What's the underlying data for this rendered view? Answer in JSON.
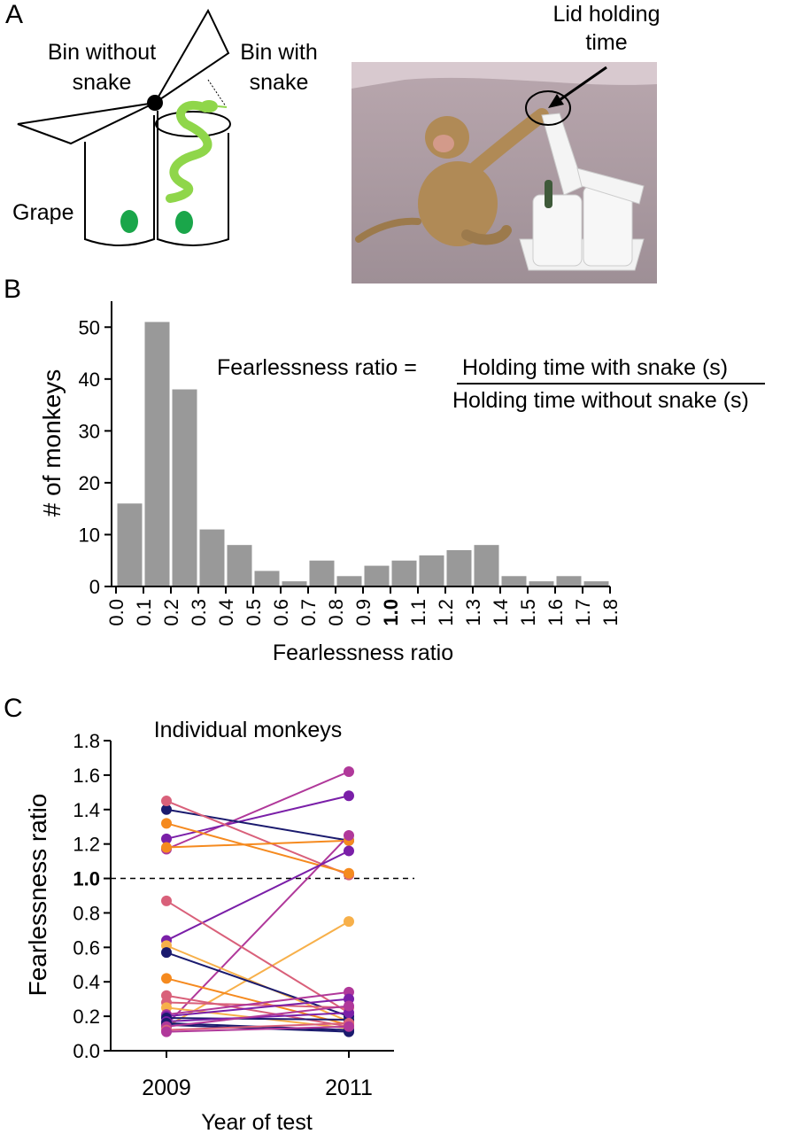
{
  "panelA": {
    "letter": "A",
    "bin_without_label_1": "Bin without",
    "bin_without_label_2": "snake",
    "bin_with_label_1": "Bin with",
    "bin_with_label_2": "snake",
    "grape_label": "Grape",
    "lid_label_1": "Lid holding",
    "lid_label_2": "time"
  },
  "panelB": {
    "letter": "B",
    "formula_lhs": "Fearlessness ratio =",
    "formula_numerator": "Holding time with snake (s)",
    "formula_denominator": "Holding time without snake (s)"
  },
  "panelC": {
    "letter": "C"
  },
  "colors": {
    "bar": "#999999",
    "navy": "#1a1a6e",
    "purple": "#7a1fa8",
    "magenta": "#b0389a",
    "rose": "#d9607a",
    "orange": "#f58a1f",
    "light_orange": "#f7b04a",
    "snake": "#8fd64a",
    "grape": "#1aa64a"
  },
  "chart_data": [
    {
      "type": "bar",
      "ylabel": "# of monkeys",
      "xlabel": "Fearlessness ratio",
      "ylim": [
        0,
        55
      ],
      "yticks": [
        0,
        10,
        20,
        30,
        40,
        50
      ],
      "xticks": [
        "0.0",
        "0.1",
        "0.2",
        "0.3",
        "0.4",
        "0.5",
        "0.6",
        "0.7",
        "0.8",
        "0.9",
        "1.0",
        "1.1",
        "1.2",
        "1.3",
        "1.4",
        "1.5",
        "1.6",
        "1.7",
        "1.8"
      ],
      "bold_tick": "1.0",
      "bin_edges": [
        0.0,
        0.1,
        0.2,
        0.3,
        0.4,
        0.5,
        0.6,
        0.7,
        0.8,
        0.9,
        1.0,
        1.1,
        1.2,
        1.3,
        1.4,
        1.5,
        1.6,
        1.7,
        1.8
      ],
      "values": [
        16,
        51,
        38,
        11,
        8,
        3,
        1,
        5,
        2,
        4,
        5,
        6,
        7,
        8,
        2,
        1,
        2,
        1
      ]
    },
    {
      "type": "line",
      "title": "Individual monkeys",
      "ylabel": "Fearlessness ratio",
      "xlabel": "Year of test",
      "categories": [
        "2009",
        "2011"
      ],
      "ylim": [
        0,
        1.8
      ],
      "yticks": [
        "0.0",
        "0.2",
        "0.4",
        "0.6",
        "0.8",
        "1.0",
        "1.2",
        "1.4",
        "1.6",
        "1.8"
      ],
      "bold_tick": "1.0",
      "reference_line": 1.0,
      "series": [
        {
          "values": [
            1.17,
            1.62
          ],
          "color": "magenta"
        },
        {
          "values": [
            1.23,
            1.48
          ],
          "color": "purple"
        },
        {
          "values": [
            1.4,
            1.22
          ],
          "color": "navy"
        },
        {
          "values": [
            1.45,
            1.02
          ],
          "color": "rose"
        },
        {
          "values": [
            1.32,
            1.03
          ],
          "color": "orange"
        },
        {
          "values": [
            1.18,
            1.22
          ],
          "color": "orange"
        },
        {
          "values": [
            0.15,
            1.25
          ],
          "color": "magenta"
        },
        {
          "values": [
            0.64,
            1.16
          ],
          "color": "purple"
        },
        {
          "values": [
            0.14,
            0.75
          ],
          "color": "light_orange"
        },
        {
          "values": [
            0.87,
            0.22
          ],
          "color": "rose"
        },
        {
          "values": [
            0.61,
            0.17
          ],
          "color": "light_orange"
        },
        {
          "values": [
            0.57,
            0.2
          ],
          "color": "navy"
        },
        {
          "values": [
            0.42,
            0.15
          ],
          "color": "orange"
        },
        {
          "values": [
            0.32,
            0.14
          ],
          "color": "rose"
        },
        {
          "values": [
            0.28,
            0.25
          ],
          "color": "rose"
        },
        {
          "values": [
            0.25,
            0.13
          ],
          "color": "light_orange"
        },
        {
          "values": [
            0.21,
            0.34
          ],
          "color": "magenta"
        },
        {
          "values": [
            0.2,
            0.3
          ],
          "color": "purple"
        },
        {
          "values": [
            0.19,
            0.18
          ],
          "color": "navy"
        },
        {
          "values": [
            0.17,
            0.22
          ],
          "color": "purple"
        },
        {
          "values": [
            0.16,
            0.12
          ],
          "color": "navy"
        },
        {
          "values": [
            0.15,
            0.11
          ],
          "color": "navy"
        },
        {
          "values": [
            0.14,
            0.26
          ],
          "color": "magenta"
        },
        {
          "values": [
            0.12,
            0.16
          ],
          "color": "rose"
        },
        {
          "values": [
            0.11,
            0.14
          ],
          "color": "magenta"
        }
      ]
    }
  ]
}
